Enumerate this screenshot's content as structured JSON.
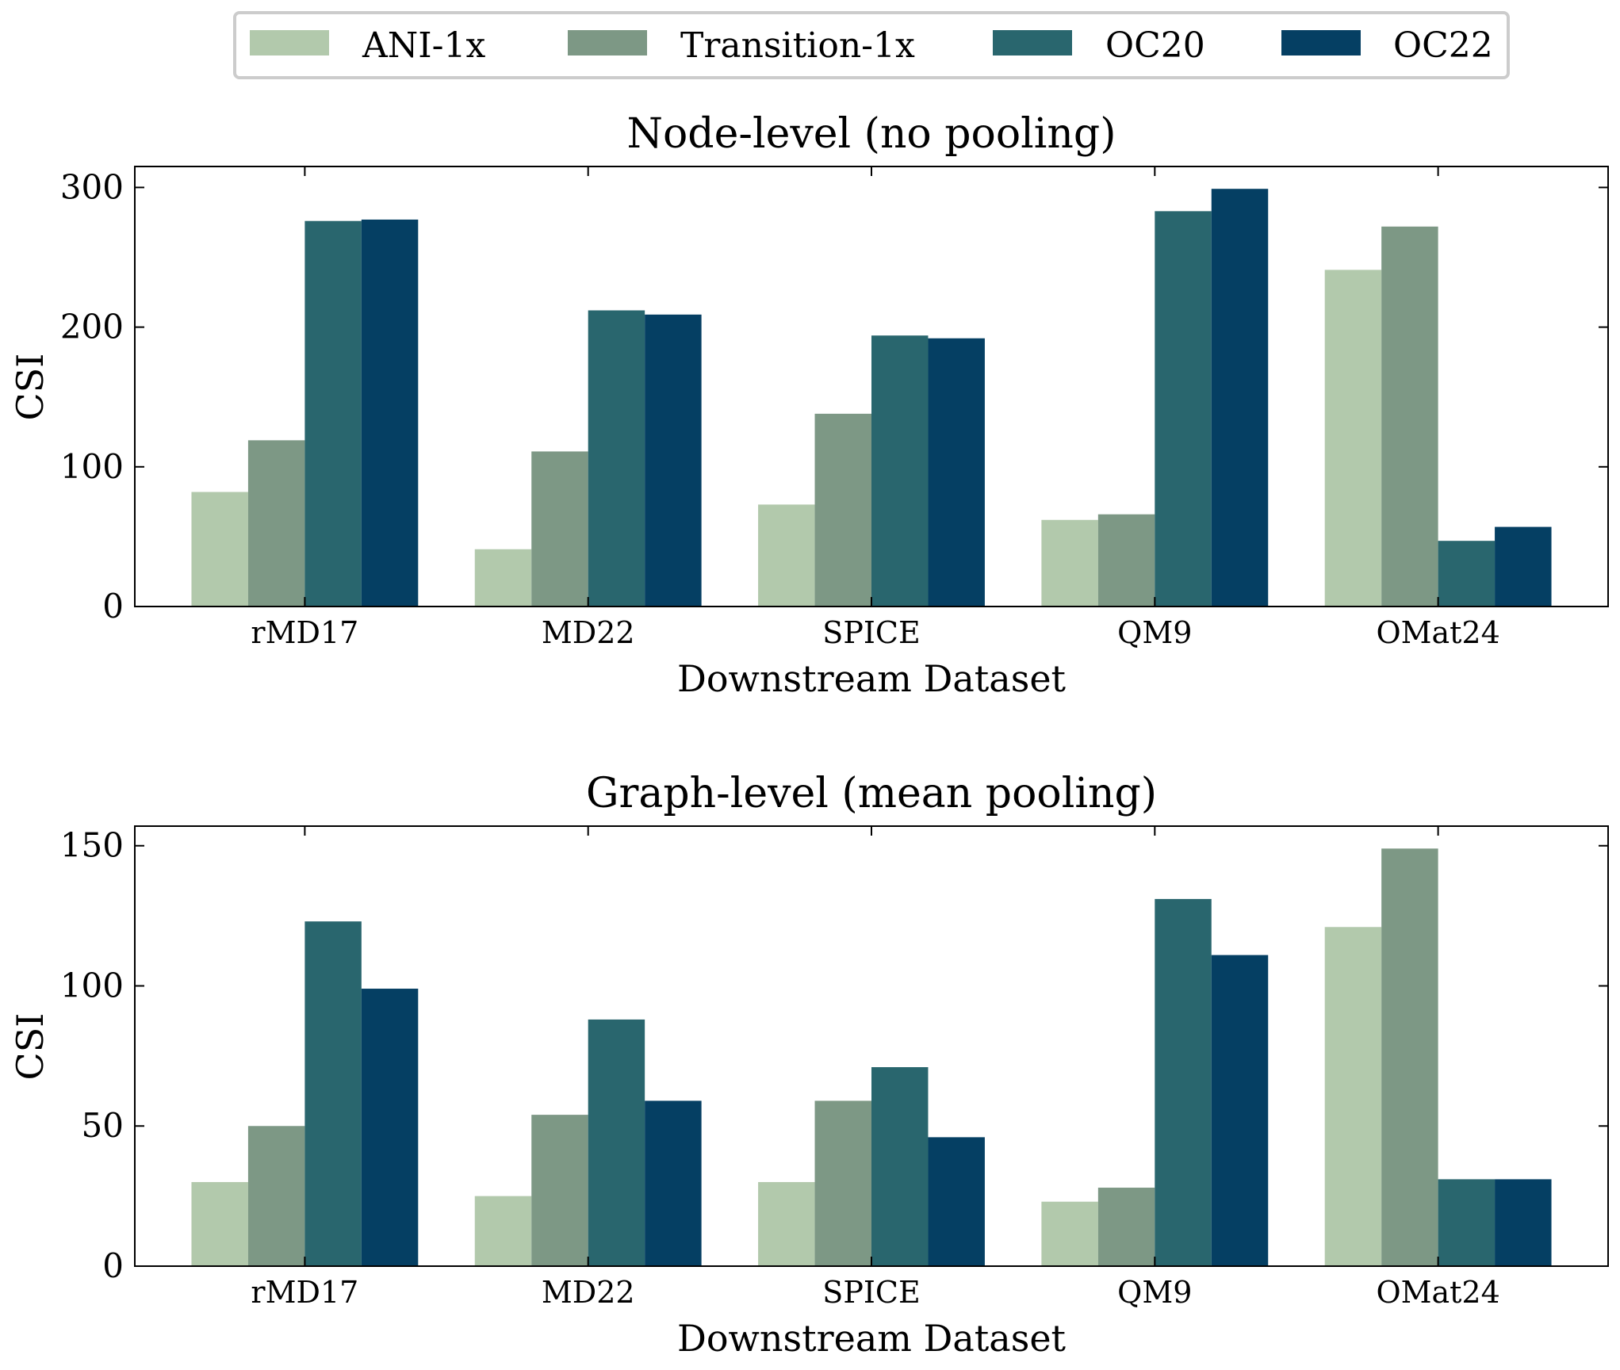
{
  "legend": {
    "entries": [
      {
        "name": "ANI-1x",
        "color": "#b2c9ac"
      },
      {
        "name": "Transition-1x",
        "color": "#7d9885"
      },
      {
        "name": "OC20",
        "color": "#29666e"
      },
      {
        "name": "OC22",
        "color": "#053f63"
      }
    ]
  },
  "chart_data": [
    {
      "type": "bar",
      "title": "Node-level (no pooling)",
      "xlabel": "Downstream Dataset",
      "ylabel": "CSI",
      "ylim": [
        0,
        315
      ],
      "yticks": [
        0,
        100,
        200,
        300
      ],
      "categories": [
        "rMD17",
        "MD22",
        "SPICE",
        "QM9",
        "OMat24"
      ],
      "series": [
        {
          "name": "ANI-1x",
          "values": [
            82,
            41,
            73,
            62,
            241
          ]
        },
        {
          "name": "Transition-1x",
          "values": [
            119,
            111,
            138,
            66,
            272
          ]
        },
        {
          "name": "OC20",
          "values": [
            276,
            212,
            194,
            283,
            47
          ]
        },
        {
          "name": "OC22",
          "values": [
            277,
            209,
            192,
            299,
            57
          ]
        }
      ]
    },
    {
      "type": "bar",
      "title": "Graph-level (mean pooling)",
      "xlabel": "Downstream Dataset",
      "ylabel": "CSI",
      "ylim": [
        0,
        157
      ],
      "yticks": [
        0,
        50,
        100,
        150
      ],
      "categories": [
        "rMD17",
        "MD22",
        "SPICE",
        "QM9",
        "OMat24"
      ],
      "series": [
        {
          "name": "ANI-1x",
          "values": [
            30,
            25,
            30,
            23,
            121
          ]
        },
        {
          "name": "Transition-1x",
          "values": [
            50,
            54,
            59,
            28,
            149
          ]
        },
        {
          "name": "OC20",
          "values": [
            123,
            88,
            71,
            131,
            31
          ]
        },
        {
          "name": "OC22",
          "values": [
            99,
            59,
            46,
            111,
            31
          ]
        }
      ]
    }
  ]
}
